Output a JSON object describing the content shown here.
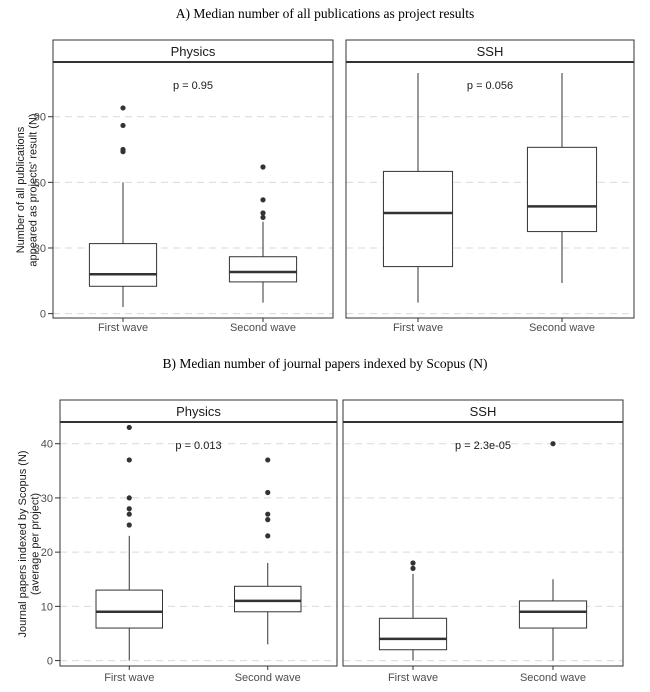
{
  "chart_data": [
    {
      "type": "box",
      "title": "A) Median number of all publications as project results",
      "ylabel": "Number of all publications appeared as projects' result (N)",
      "ylim": [
        -2,
        115
      ],
      "yticks": [
        0,
        30,
        60,
        90
      ],
      "grid": true,
      "categories": [
        "First wave",
        "Second wave"
      ],
      "panels": [
        {
          "name": "Physics",
          "annotation": "p = 0.95",
          "boxes": [
            {
              "category": "First wave",
              "whisker_low": 3,
              "q1": 12.5,
              "median": 18,
              "q3": 32,
              "whisker_high": 60,
              "outliers": [
                74,
                75,
                86,
                94
              ]
            },
            {
              "category": "Second wave",
              "whisker_low": 5,
              "q1": 14.5,
              "median": 19,
              "q3": 26,
              "whisker_high": 42,
              "outliers": [
                44,
                46,
                52,
                67
              ]
            }
          ]
        },
        {
          "name": "SSH",
          "annotation": "p = 0.056",
          "boxes": [
            {
              "category": "First wave",
              "whisker_low": 5,
              "q1": 21.5,
              "median": 46,
              "q3": 65,
              "whisker_high": 110,
              "outliers": []
            },
            {
              "category": "Second wave",
              "whisker_low": 14,
              "q1": 37.5,
              "median": 49,
              "q3": 76,
              "whisker_high": 110,
              "outliers": []
            }
          ]
        }
      ]
    },
    {
      "type": "box",
      "title": "B) Median number of journal papers indexed by Scopus (N)",
      "ylabel": "Journal papers indexed by Scopus (N) (average per project)",
      "ylim": [
        -1,
        44
      ],
      "yticks": [
        0,
        10,
        20,
        30,
        40
      ],
      "grid": true,
      "categories": [
        "First wave",
        "Second wave"
      ],
      "panels": [
        {
          "name": "Physics",
          "annotation": "p = 0.013",
          "boxes": [
            {
              "category": "First wave",
              "whisker_low": 0,
              "q1": 6,
              "median": 9,
              "q3": 13,
              "whisker_high": 23,
              "outliers": [
                25,
                27,
                28,
                30,
                37,
                43
              ]
            },
            {
              "category": "Second wave",
              "whisker_low": 3,
              "q1": 9,
              "median": 11,
              "q3": 13.7,
              "whisker_high": 18,
              "outliers": [
                23,
                26,
                27,
                31,
                37
              ]
            }
          ]
        },
        {
          "name": "SSH",
          "annotation": "p = 2.3e-05",
          "boxes": [
            {
              "category": "First wave",
              "whisker_low": 0,
              "q1": 2,
              "median": 4,
              "q3": 7.8,
              "whisker_high": 16,
              "outliers": [
                17,
                18
              ]
            },
            {
              "category": "Second wave",
              "whisker_low": 0,
              "q1": 6,
              "median": 9,
              "q3": 11,
              "whisker_high": 15,
              "outliers": [
                40
              ]
            }
          ]
        }
      ]
    }
  ],
  "colors": {
    "panel_border": "#333333",
    "strip_fill": "#ffffff",
    "grid": "#d9d9d9",
    "box_line": "#333333",
    "median_line": "#333333",
    "outlier": "#333333",
    "axis_text": "#4d4d4d"
  }
}
